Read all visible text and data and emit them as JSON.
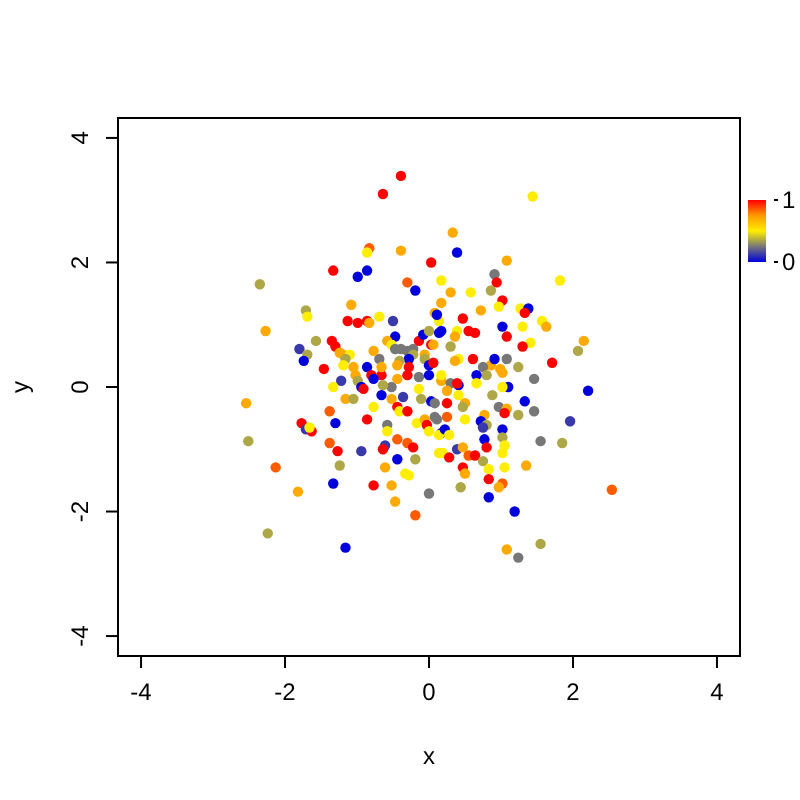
{
  "chart_data": {
    "type": "scatter",
    "xlabel": "x",
    "ylabel": "y",
    "xlim": [
      -4.32,
      4.32
    ],
    "ylim": [
      -4.32,
      4.32
    ],
    "xticks": [
      -4,
      -2,
      0,
      2,
      4
    ],
    "yticks": [
      -4,
      -2,
      0,
      2,
      4
    ],
    "marker": "circle",
    "clim": [
      0,
      1
    ],
    "cticks": [
      0,
      1
    ],
    "x": [
      -0.39,
      -0.64,
      -0.83,
      -0.86,
      -0.39,
      -1.33,
      -0.86,
      -0.99,
      0.03,
      -2.35,
      -0.3,
      -0.19,
      -1.08,
      -1.71,
      -1.69,
      -1.13,
      -0.99,
      -0.86,
      -0.83,
      -0.69,
      -0.5,
      -2.27,
      -0.47,
      0.08,
      0.14,
      0.17,
      -1.8,
      -1.57,
      -1.35,
      -1.3,
      -1.24,
      -1.19,
      -1.1,
      -1.69,
      -1.74,
      -1.16,
      -0.69,
      -0.77,
      -0.58,
      -0.52,
      -0.47,
      -0.39,
      -0.3,
      -0.22,
      -0.22,
      -0.14,
      -0.08,
      0.0,
      0.03,
      -0.06,
      -0.06,
      -0.28,
      -0.41,
      -0.44,
      -0.28,
      0.0,
      0.14,
      0.17,
      -0.86,
      -1.46,
      1.44,
      0.33,
      0.39,
      1.08,
      0.91,
      0.94,
      1.82,
      0.3,
      0.58,
      0.86,
      0.72,
      1.02,
      0.97,
      1.27,
      1.38,
      1.33,
      0.11,
      0.47,
      1.57,
      1.63,
      1.02,
      1.3,
      0.55,
      0.64,
      0.39,
      0.17,
      0.36,
      1.08,
      0.06,
      0.3,
      1.41,
      1.3,
      2.15,
      2.07,
      0.06,
      0.41,
      0.36,
      0.61,
      0.86,
      0.91,
      1.08,
      0.75,
      0.99,
      1.24,
      1.71,
      -1.05,
      -1.02,
      -1.19,
      -0.8,
      -0.66,
      -0.77,
      -0.66,
      -0.3,
      -0.14,
      0.0,
      0.17,
      -0.52,
      -0.64,
      -0.44,
      -0.99,
      -1.22,
      -1.33,
      -1.16,
      -1.05,
      -0.94,
      -0.91,
      -0.66,
      -0.52,
      -0.36,
      -0.14,
      0.03,
      0.08,
      -0.11,
      -0.77,
      -0.44,
      -0.41,
      -0.3,
      -1.38,
      -2.54,
      -1.77,
      -1.71,
      -1.63,
      -1.66,
      -1.3,
      -0.86,
      -0.58,
      -0.58,
      -0.17,
      -0.06,
      -0.03,
      0.0,
      0.11,
      0.17,
      -2.51,
      -1.38,
      -0.61,
      -0.64,
      -0.44,
      -0.3,
      0.14,
      -1.27,
      -0.94,
      -0.22,
      0.14,
      -0.44,
      -0.19,
      -2.13,
      -1.24,
      -0.61,
      -0.33,
      -0.28,
      -1.33,
      -0.77,
      -0.52,
      -1.82,
      0.0,
      -0.47,
      -0.19,
      -2.24,
      -1.16,
      1.02,
      0.8,
      0.66,
      0.17,
      0.3,
      0.41,
      0.39,
      0.66,
      1.1,
      1.02,
      1.46,
      2.21,
      0.25,
      0.41,
      0.88,
      1.33,
      0.25,
      0.5,
      0.47,
      0.97,
      1.08,
      1.05,
      1.46,
      1.24,
      0.08,
      0.25,
      0.77,
      1.96,
      0.72,
      0.8,
      0.75,
      0.22,
      0.28,
      0.5,
      1.02,
      1.02,
      1.05,
      1.02,
      0.77,
      0.8,
      1.55,
      1.85,
      0.39,
      0.47,
      0.55,
      0.64,
      0.19,
      0.28,
      0.75,
      1.05,
      1.35,
      0.47,
      0.5,
      0.83,
      0.83,
      1.02,
      0.97,
      0.44,
      0.83,
      2.54,
      1.19,
      1.55,
      1.08,
      1.24
    ],
    "values": [
      3.39,
      3.1,
      2.23,
      2.16,
      2.19,
      1.87,
      1.87,
      1.77,
      2.0,
      1.65,
      1.68,
      1.55,
      1.32,
      1.23,
      1.13,
      1.06,
      1.03,
      1.06,
      1.03,
      1.13,
      1.06,
      0.9,
      0.81,
      1.19,
      1.06,
      1.35,
      0.61,
      0.74,
      0.74,
      0.65,
      0.55,
      0.52,
      0.52,
      0.52,
      0.42,
      0.45,
      0.45,
      0.58,
      0.74,
      0.68,
      0.61,
      0.61,
      0.58,
      0.61,
      0.52,
      0.74,
      0.84,
      0.9,
      0.68,
      0.52,
      0.45,
      0.45,
      0.42,
      0.35,
      0.32,
      0.35,
      0.87,
      1.71,
      0.32,
      0.29,
      3.06,
      2.48,
      2.16,
      2.03,
      1.81,
      1.68,
      1.71,
      1.52,
      1.52,
      1.55,
      1.23,
      1.39,
      1.29,
      1.26,
      1.26,
      1.19,
      1.16,
      1.1,
      1.06,
      0.97,
      0.97,
      0.97,
      0.9,
      0.87,
      0.9,
      0.9,
      0.81,
      0.81,
      0.68,
      0.65,
      0.71,
      0.65,
      0.74,
      0.58,
      0.39,
      0.45,
      0.42,
      0.45,
      0.35,
      0.45,
      0.45,
      0.32,
      0.29,
      0.32,
      0.39,
      0.32,
      0.19,
      0.35,
      0.19,
      0.19,
      0.13,
      0.32,
      0.19,
      0.16,
      0.19,
      0.1,
      0.0,
      0.03,
      0.13,
      0.1,
      0.1,
      0.0,
      -0.19,
      -0.19,
      0.0,
      -0.03,
      -0.13,
      -0.19,
      -0.16,
      -0.03,
      -0.23,
      -0.26,
      -0.19,
      -0.32,
      -0.32,
      -0.39,
      -0.39,
      -0.39,
      -0.26,
      -0.58,
      -0.68,
      -0.71,
      -0.65,
      -0.58,
      -0.52,
      -0.61,
      -0.71,
      -0.58,
      -0.52,
      -0.61,
      -0.71,
      -0.52,
      -0.74,
      -0.87,
      -0.9,
      -0.94,
      -1.0,
      -0.84,
      -0.9,
      -0.77,
      -1.03,
      -1.03,
      -0.97,
      -1.06,
      -1.16,
      -1.16,
      -1.29,
      -1.26,
      -1.29,
      -1.39,
      -1.42,
      -1.55,
      -1.58,
      -1.58,
      -1.68,
      -1.71,
      -1.84,
      -2.06,
      -2.35,
      -2.58,
      0.23,
      0.19,
      0.19,
      0.19,
      0.06,
      0.03,
      0.06,
      0.06,
      0.0,
      0.0,
      0.13,
      -0.06,
      -0.06,
      -0.13,
      -0.13,
      -0.23,
      -0.26,
      -0.26,
      -0.32,
      -0.32,
      -0.35,
      -0.42,
      -0.39,
      -0.45,
      -0.48,
      -0.48,
      -0.45,
      -0.55,
      -0.55,
      -0.61,
      -0.65,
      -0.68,
      -0.77,
      -0.52,
      -0.68,
      -0.81,
      -0.94,
      -1.06,
      -0.84,
      -0.97,
      -0.87,
      -0.9,
      -1.0,
      -0.97,
      -1.1,
      -1.1,
      -1.06,
      -1.13,
      -1.19,
      -1.29,
      -1.26,
      -1.29,
      -1.39,
      -1.32,
      -1.48,
      -1.55,
      -1.61,
      -1.61,
      -1.77,
      -1.65,
      -2.0,
      -2.52,
      -2.61,
      -2.74
    ],
    "cvalues": [
      1,
      1,
      0.85,
      0.5,
      0.7,
      1,
      0,
      0,
      1,
      0.35,
      0.85,
      0,
      0.7,
      0.35,
      0.5,
      1,
      1,
      1,
      0.7,
      0.5,
      0.12,
      0.7,
      0,
      0.7,
      0.5,
      0.7,
      0.12,
      0.35,
      1,
      1,
      0.7,
      0.7,
      0.5,
      0.35,
      0,
      0.35,
      0.25,
      0.7,
      0.7,
      0.5,
      0.25,
      0.25,
      0.25,
      0.25,
      0.35,
      1,
      0,
      0.35,
      1,
      0.7,
      0.35,
      0,
      0.35,
      0.7,
      1,
      0,
      0,
      0.5,
      0,
      1,
      0.5,
      0.7,
      0,
      0.7,
      0.25,
      1,
      0.5,
      0.7,
      0.5,
      0.35,
      0.7,
      1,
      0.5,
      0.5,
      0,
      1,
      0,
      1,
      0.5,
      0.7,
      0,
      0.5,
      1,
      1,
      0.5,
      0,
      0.7,
      1,
      0.7,
      0.35,
      0.5,
      1,
      0.7,
      0.35,
      1,
      0.5,
      0.7,
      1,
      0.7,
      0,
      0.25,
      0.25,
      0.7,
      0.35,
      1,
      0.7,
      0.7,
      0.5,
      1,
      1,
      0,
      0.7,
      1,
      0.25,
      0,
      0.7,
      0.25,
      0.35,
      0.7,
      0.35,
      0.12,
      0.5,
      0.7,
      0.35,
      0,
      1,
      0,
      0.7,
      0.12,
      0.5,
      0,
      0.25,
      0.35,
      0.5,
      1,
      0.5,
      1,
      0.85,
      0.7,
      1,
      0.12,
      1,
      0.5,
      0,
      1,
      0.25,
      0.5,
      0.5,
      0.7,
      1,
      0.5,
      0.25,
      0,
      0.35,
      0.85,
      0.12,
      1,
      0.85,
      0.85,
      0.5,
      1,
      0.12,
      1,
      0.5,
      0,
      0.35,
      0.85,
      0.35,
      0.7,
      0.5,
      0.5,
      0,
      1,
      0.7,
      0.7,
      0.25,
      0.7,
      0.85,
      0.35,
      0,
      0.7,
      0.35,
      0,
      0.5,
      0.25,
      0,
      1,
      0.5,
      0,
      0.5,
      0.25,
      0,
      0.7,
      0.5,
      0.35,
      0,
      1,
      0.7,
      0.35,
      0.25,
      0.7,
      1,
      0.25,
      0.35,
      0.25,
      0.85,
      0.7,
      0.12,
      0,
      0.35,
      0.12,
      0,
      0.5,
      0.5,
      0,
      0.35,
      0.5,
      0.5,
      0,
      1,
      0.25,
      0.35,
      0.12,
      0.7,
      0.85,
      1,
      0.5,
      1,
      0.35,
      0.5,
      0.7,
      1,
      0.7,
      0.5,
      1,
      0.85,
      0.7,
      0.35,
      0,
      0.85,
      0,
      0.35,
      0.7,
      0.25
    ]
  }
}
